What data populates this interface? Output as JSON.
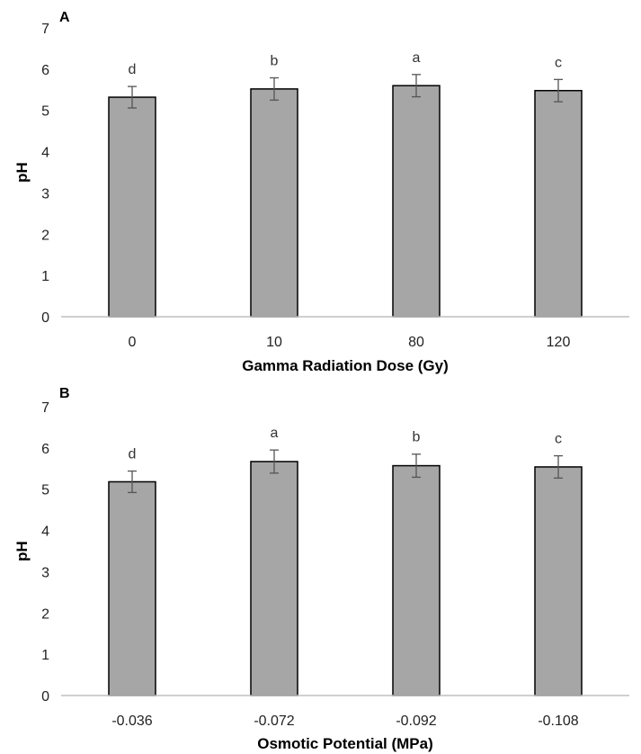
{
  "colors": {
    "bar_fill": "#a6a6a6",
    "bar_stroke": "#000000",
    "error_bar": "#555555",
    "axis": "#bfbfbf"
  },
  "chart_data": [
    {
      "type": "bar",
      "panel_label": "A",
      "categories": [
        "0",
        "10",
        "80",
        "120"
      ],
      "values": [
        5.32,
        5.52,
        5.6,
        5.48
      ],
      "errors": [
        0.26,
        0.27,
        0.27,
        0.27
      ],
      "significance": [
        "d",
        "b",
        "a",
        "c"
      ],
      "title": "",
      "xlabel": "Gamma Radiation Dose (Gy)",
      "ylabel": "pH",
      "ylim": [
        0,
        7
      ],
      "yticks": [
        0,
        1,
        2,
        3,
        4,
        5,
        6,
        7
      ],
      "grid": false,
      "legend": "none"
    },
    {
      "type": "bar",
      "panel_label": "B",
      "categories": [
        "-0.036",
        "-0.072",
        "-0.092",
        "-0.108"
      ],
      "values": [
        5.18,
        5.67,
        5.57,
        5.54
      ],
      "errors": [
        0.26,
        0.28,
        0.28,
        0.27
      ],
      "significance": [
        "d",
        "a",
        "b",
        "c"
      ],
      "title": "",
      "xlabel": "Osmotic Potential (MPa)",
      "ylabel": "pH",
      "ylim": [
        0,
        7
      ],
      "yticks": [
        0,
        1,
        2,
        3,
        4,
        5,
        6,
        7
      ],
      "grid": false,
      "legend": "none"
    }
  ]
}
